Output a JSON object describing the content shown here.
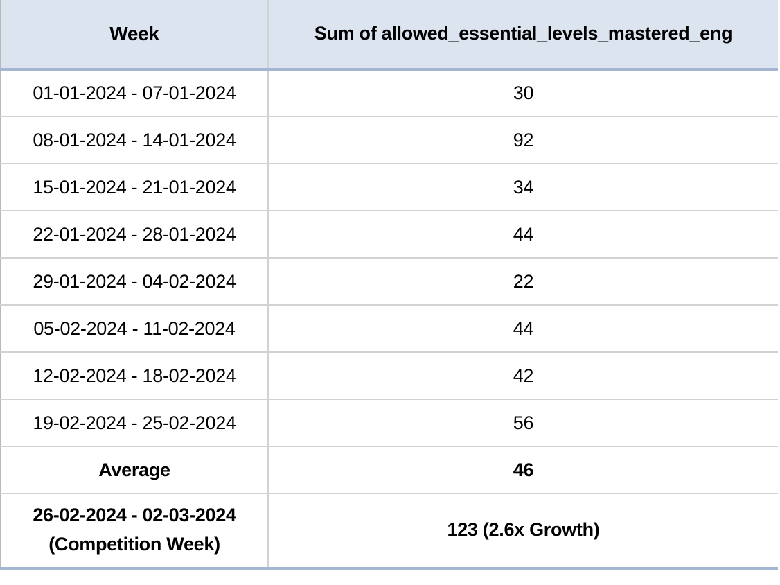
{
  "table": {
    "columns": [
      {
        "label": "Week"
      },
      {
        "label": "Sum of allowed_essential_levels_mastered_eng"
      }
    ],
    "rows": [
      {
        "week_lines": [
          "01-01-2024 - 07-01-2024"
        ],
        "value": "30",
        "bold": false
      },
      {
        "week_lines": [
          "08-01-2024 - 14-01-2024"
        ],
        "value": "92",
        "bold": false
      },
      {
        "week_lines": [
          "15-01-2024 - 21-01-2024"
        ],
        "value": "34",
        "bold": false
      },
      {
        "week_lines": [
          "22-01-2024 - 28-01-2024"
        ],
        "value": "44",
        "bold": false
      },
      {
        "week_lines": [
          "29-01-2024 - 04-02-2024"
        ],
        "value": "22",
        "bold": false
      },
      {
        "week_lines": [
          "05-02-2024 - 11-02-2024"
        ],
        "value": "44",
        "bold": false
      },
      {
        "week_lines": [
          "12-02-2024 - 18-02-2024"
        ],
        "value": "42",
        "bold": false
      },
      {
        "week_lines": [
          "19-02-2024 - 25-02-2024"
        ],
        "value": "56",
        "bold": false
      },
      {
        "week_lines": [
          "Average"
        ],
        "value": "46",
        "bold": true
      },
      {
        "week_lines": [
          "26-02-2024 - 02-03-2024",
          "(Competition Week)"
        ],
        "value": "123 (2.6x Growth)",
        "bold": true
      }
    ],
    "colors": {
      "header_bg": "#DCE4EF",
      "accent_border": "#A4B6D2",
      "grid_line": "#D2D2D2",
      "edge_line": "#B8B8B8",
      "text": "#000000"
    }
  },
  "chart_data": {
    "type": "table",
    "title": "",
    "columns": [
      "Week",
      "Sum of allowed_essential_levels_mastered_eng"
    ],
    "categories": [
      "01-01-2024 - 07-01-2024",
      "08-01-2024 - 14-01-2024",
      "15-01-2024 - 21-01-2024",
      "22-01-2024 - 28-01-2024",
      "29-01-2024 - 04-02-2024",
      "05-02-2024 - 11-02-2024",
      "12-02-2024 - 18-02-2024",
      "19-02-2024 - 25-02-2024"
    ],
    "values": [
      30,
      92,
      34,
      44,
      22,
      44,
      42,
      56
    ],
    "summary_rows": [
      {
        "label": "Average",
        "value": 46
      },
      {
        "label": "26-02-2024 - 02-03-2024 (Competition Week)",
        "value": "123 (2.6x Growth)",
        "growth_multiplier": "2.6x"
      }
    ]
  }
}
